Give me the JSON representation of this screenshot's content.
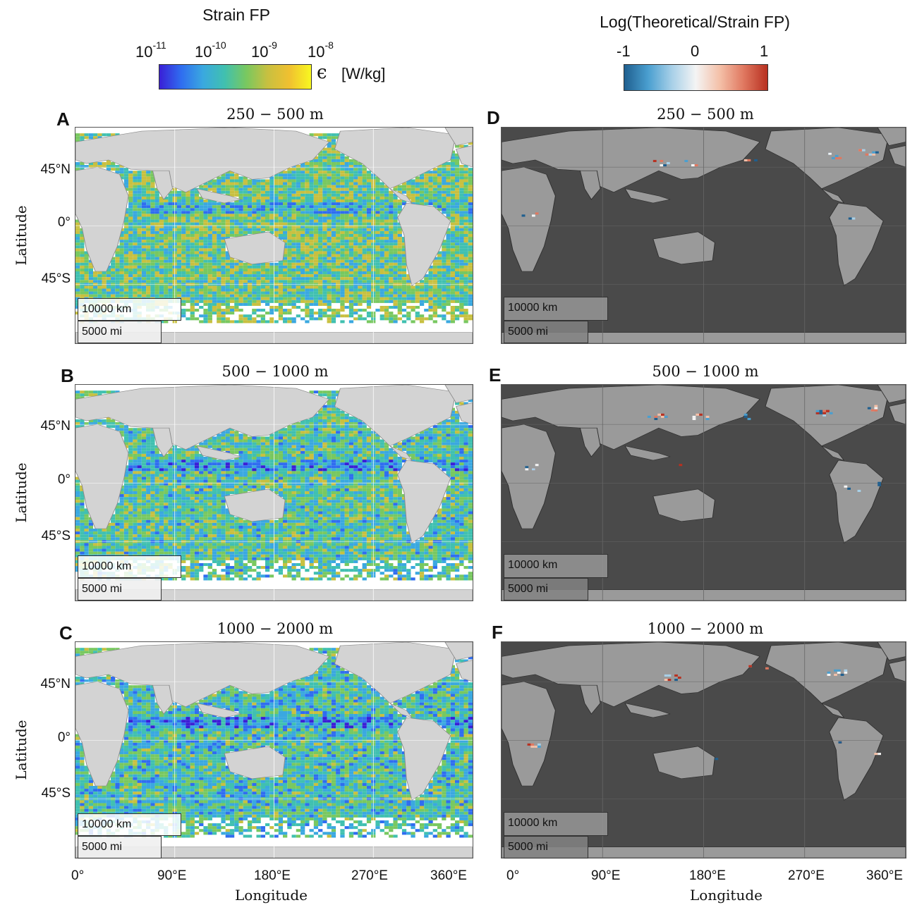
{
  "colorbar_left": {
    "title": "Strain FP",
    "ticks": [
      {
        "base": "10",
        "exp": "-11"
      },
      {
        "base": "10",
        "exp": "-10"
      },
      {
        "base": "10",
        "exp": "-9"
      },
      {
        "base": "10",
        "exp": "-8"
      }
    ],
    "unit_symbol": "ϵ",
    "unit": "[W/kg]",
    "colors": [
      "#3a1fd6",
      "#2f6df0",
      "#3aa8e0",
      "#40c0b0",
      "#78c860",
      "#c8c040",
      "#f0c030",
      "#f8f820"
    ]
  },
  "colorbar_right": {
    "title": "Log(Theoretical/Strain FP)",
    "ticks": [
      "-1",
      "0",
      "1"
    ],
    "colors": [
      "#1f5f8f",
      "#4a9fd0",
      "#a8d0e8",
      "#f4f4f4",
      "#f4c0a8",
      "#e07860",
      "#b83020"
    ]
  },
  "panels": {
    "A": {
      "letter": "A",
      "title": "250 − 500 m"
    },
    "B": {
      "letter": "B",
      "title": "500 − 1000 m"
    },
    "C": {
      "letter": "C",
      "title": "1000 − 2000 m"
    },
    "D": {
      "letter": "D",
      "title": "250 − 500 m"
    },
    "E": {
      "letter": "E",
      "title": "500 − 1000 m"
    },
    "F": {
      "letter": "F",
      "title": "1000 − 2000 m"
    }
  },
  "axes": {
    "ylabel": "Latitude",
    "xlabel": "Longitude",
    "lat_ticks": [
      "45°N",
      "0°",
      "45°S"
    ],
    "lon_ticks": [
      "0°",
      "90°E",
      "180°E",
      "270°E",
      "360°E"
    ]
  },
  "scalebar": {
    "km": "10000 km",
    "mi": "5000 mi"
  },
  "map_colors": {
    "land_left": "#d3d3d3",
    "ocean_right": "#4a4a4a",
    "land_right": "#9a9a9a",
    "no_data": "#ffffff"
  }
}
